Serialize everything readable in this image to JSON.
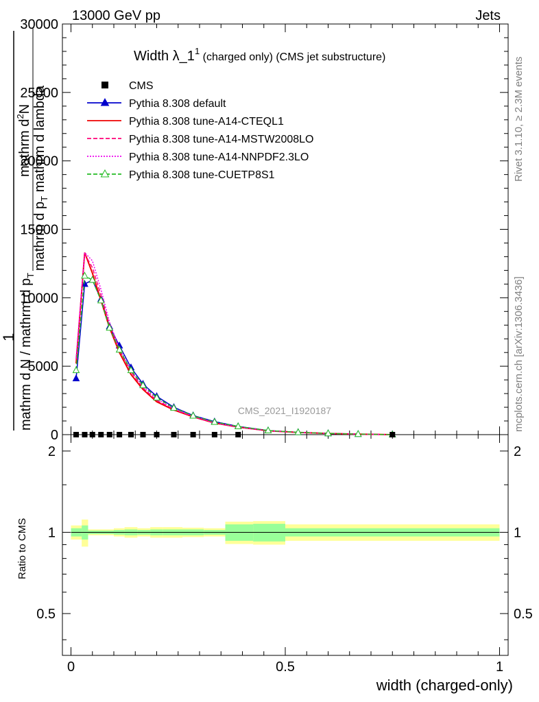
{
  "header": {
    "left": "13000 GeV pp",
    "right": "Jets"
  },
  "side_labels": {
    "rivet": "Rivet 3.1.10, ≥ 2.3M events",
    "mcplots": "mcplots.cern.ch [arXiv:1306.3436]"
  },
  "watermark": "CMS_2021_I1920187",
  "title": {
    "main": "Width λ_1",
    "sup": "1",
    "sub": " (charged only) (CMS jet substructure)"
  },
  "ylabel_main": {
    "l1": "1",
    "l2": "mathrm d N / mathrm d p",
    "l2sub": "T",
    "l3": "mathrm d",
    "l3sup": "2",
    "l3b": "N",
    "l4": "mathrm d p",
    "l4sub": "T",
    "l4b": " mathrm d lambda"
  },
  "ylabel_ratio": "Ratio to CMS",
  "xlabel": "width (charged-only)",
  "legend": [
    {
      "label": "CMS",
      "color": "#000000",
      "style": "solid",
      "marker": "square"
    },
    {
      "label": "Pythia 8.308 default",
      "color": "#0000cc",
      "style": "solid",
      "marker": "triangle"
    },
    {
      "label": "Pythia 8.308 tune-A14-CTEQL1",
      "color": "#ee0000",
      "style": "solid",
      "marker": "none"
    },
    {
      "label": "Pythia 8.308 tune-A14-MSTW2008LO",
      "color": "#ff0077",
      "style": "dashed",
      "marker": "none"
    },
    {
      "label": "Pythia 8.308 tune-A14-NNPDF2.3LO",
      "color": "#ee00ee",
      "style": "dotted",
      "marker": "none"
    },
    {
      "label": "Pythia 8.308 tune-CUETP8S1",
      "color": "#22bb22",
      "style": "dashed",
      "marker": "open-triangle"
    }
  ],
  "chart_data": [
    {
      "type": "line",
      "panel": "main",
      "title": "Width λ_1^1 (charged only) (CMS jet substructure)",
      "xlabel": "width (charged-only)",
      "ylabel": "1 / mathrm d N / mathrm d p_T  mathrm d^2 N / mathrm d p_T mathrm d lambda",
      "xlim": [
        -0.02,
        1.02
      ],
      "ylim": [
        0,
        30000
      ],
      "yticks": [
        0,
        5000,
        10000,
        15000,
        20000,
        25000,
        30000
      ],
      "ytick_labels": [
        "0",
        "5000",
        "10000",
        "15000",
        "20000",
        "25000",
        "30000"
      ],
      "x": [
        0.012,
        0.032,
        0.05,
        0.07,
        0.09,
        0.113,
        0.14,
        0.168,
        0.2,
        0.24,
        0.285,
        0.335,
        0.39,
        0.46,
        0.53,
        0.6,
        0.67,
        0.75
      ],
      "data_points": {
        "name": "CMS",
        "x": [
          0.012,
          0.032,
          0.05,
          0.07,
          0.09,
          0.113,
          0.14,
          0.168,
          0.2,
          0.24,
          0.285,
          0.335,
          0.39,
          0.75
        ],
        "y": [
          0,
          0,
          0,
          0,
          0,
          0,
          0,
          0,
          0,
          0,
          0,
          0,
          0,
          0
        ]
      },
      "series": [
        {
          "name": "Pythia 8.308 default",
          "values": [
            4100,
            11000,
            11300,
            9900,
            7900,
            6500,
            4900,
            3700,
            2800,
            2000,
            1400,
            950,
            600,
            300,
            170,
            90,
            40,
            0
          ]
        },
        {
          "name": "Pythia 8.308 tune-A14-CTEQL1",
          "values": [
            5200,
            13300,
            11800,
            9800,
            7800,
            6000,
            4400,
            3300,
            2400,
            1800,
            1300,
            850,
            550,
            280,
            160,
            85,
            35,
            0
          ]
        },
        {
          "name": "Pythia 8.308 tune-A14-MSTW2008LO",
          "values": [
            5500,
            13200,
            12200,
            10200,
            8000,
            6200,
            4600,
            3400,
            2500,
            1850,
            1300,
            850,
            550,
            280,
            160,
            85,
            35,
            0
          ]
        },
        {
          "name": "Pythia 8.308 tune-A14-NNPDF2.3LO",
          "values": [
            5600,
            13300,
            12700,
            10600,
            8200,
            6300,
            4700,
            3500,
            2600,
            1900,
            1350,
            880,
            560,
            290,
            165,
            88,
            38,
            0
          ]
        },
        {
          "name": "Pythia 8.308 tune-CUETP8S1",
          "values": [
            4700,
            11600,
            11300,
            9800,
            7800,
            6200,
            4700,
            3600,
            2700,
            1950,
            1380,
            920,
            600,
            300,
            170,
            90,
            40,
            0
          ]
        }
      ]
    },
    {
      "type": "area",
      "panel": "ratio",
      "ylabel": "Ratio to CMS",
      "xlabel": "width (charged-only)",
      "xlim": [
        -0.02,
        1.02
      ],
      "ylim": [
        0.35,
        2.3
      ],
      "yticks": [
        0.5,
        1,
        2
      ],
      "ytick_labels": [
        "0.5",
        "1",
        "2"
      ],
      "xticks": [
        0,
        0.5,
        1
      ],
      "xtick_labels": [
        "0",
        "0.5",
        "1"
      ],
      "bins": [
        0,
        0.025,
        0.04,
        0.06,
        0.08,
        0.1,
        0.125,
        0.155,
        0.185,
        0.215,
        0.26,
        0.31,
        0.36,
        0.425,
        0.5,
        1.0
      ],
      "stat_band": [
        0.035,
        0.06,
        0.015,
        0.015,
        0.015,
        0.02,
        0.025,
        0.02,
        0.025,
        0.025,
        0.025,
        0.02,
        0.07,
        0.075,
        0.035
      ],
      "total_band": [
        0.06,
        0.115,
        0.025,
        0.025,
        0.025,
        0.035,
        0.045,
        0.035,
        0.045,
        0.045,
        0.04,
        0.035,
        0.095,
        0.1,
        0.07
      ]
    }
  ]
}
